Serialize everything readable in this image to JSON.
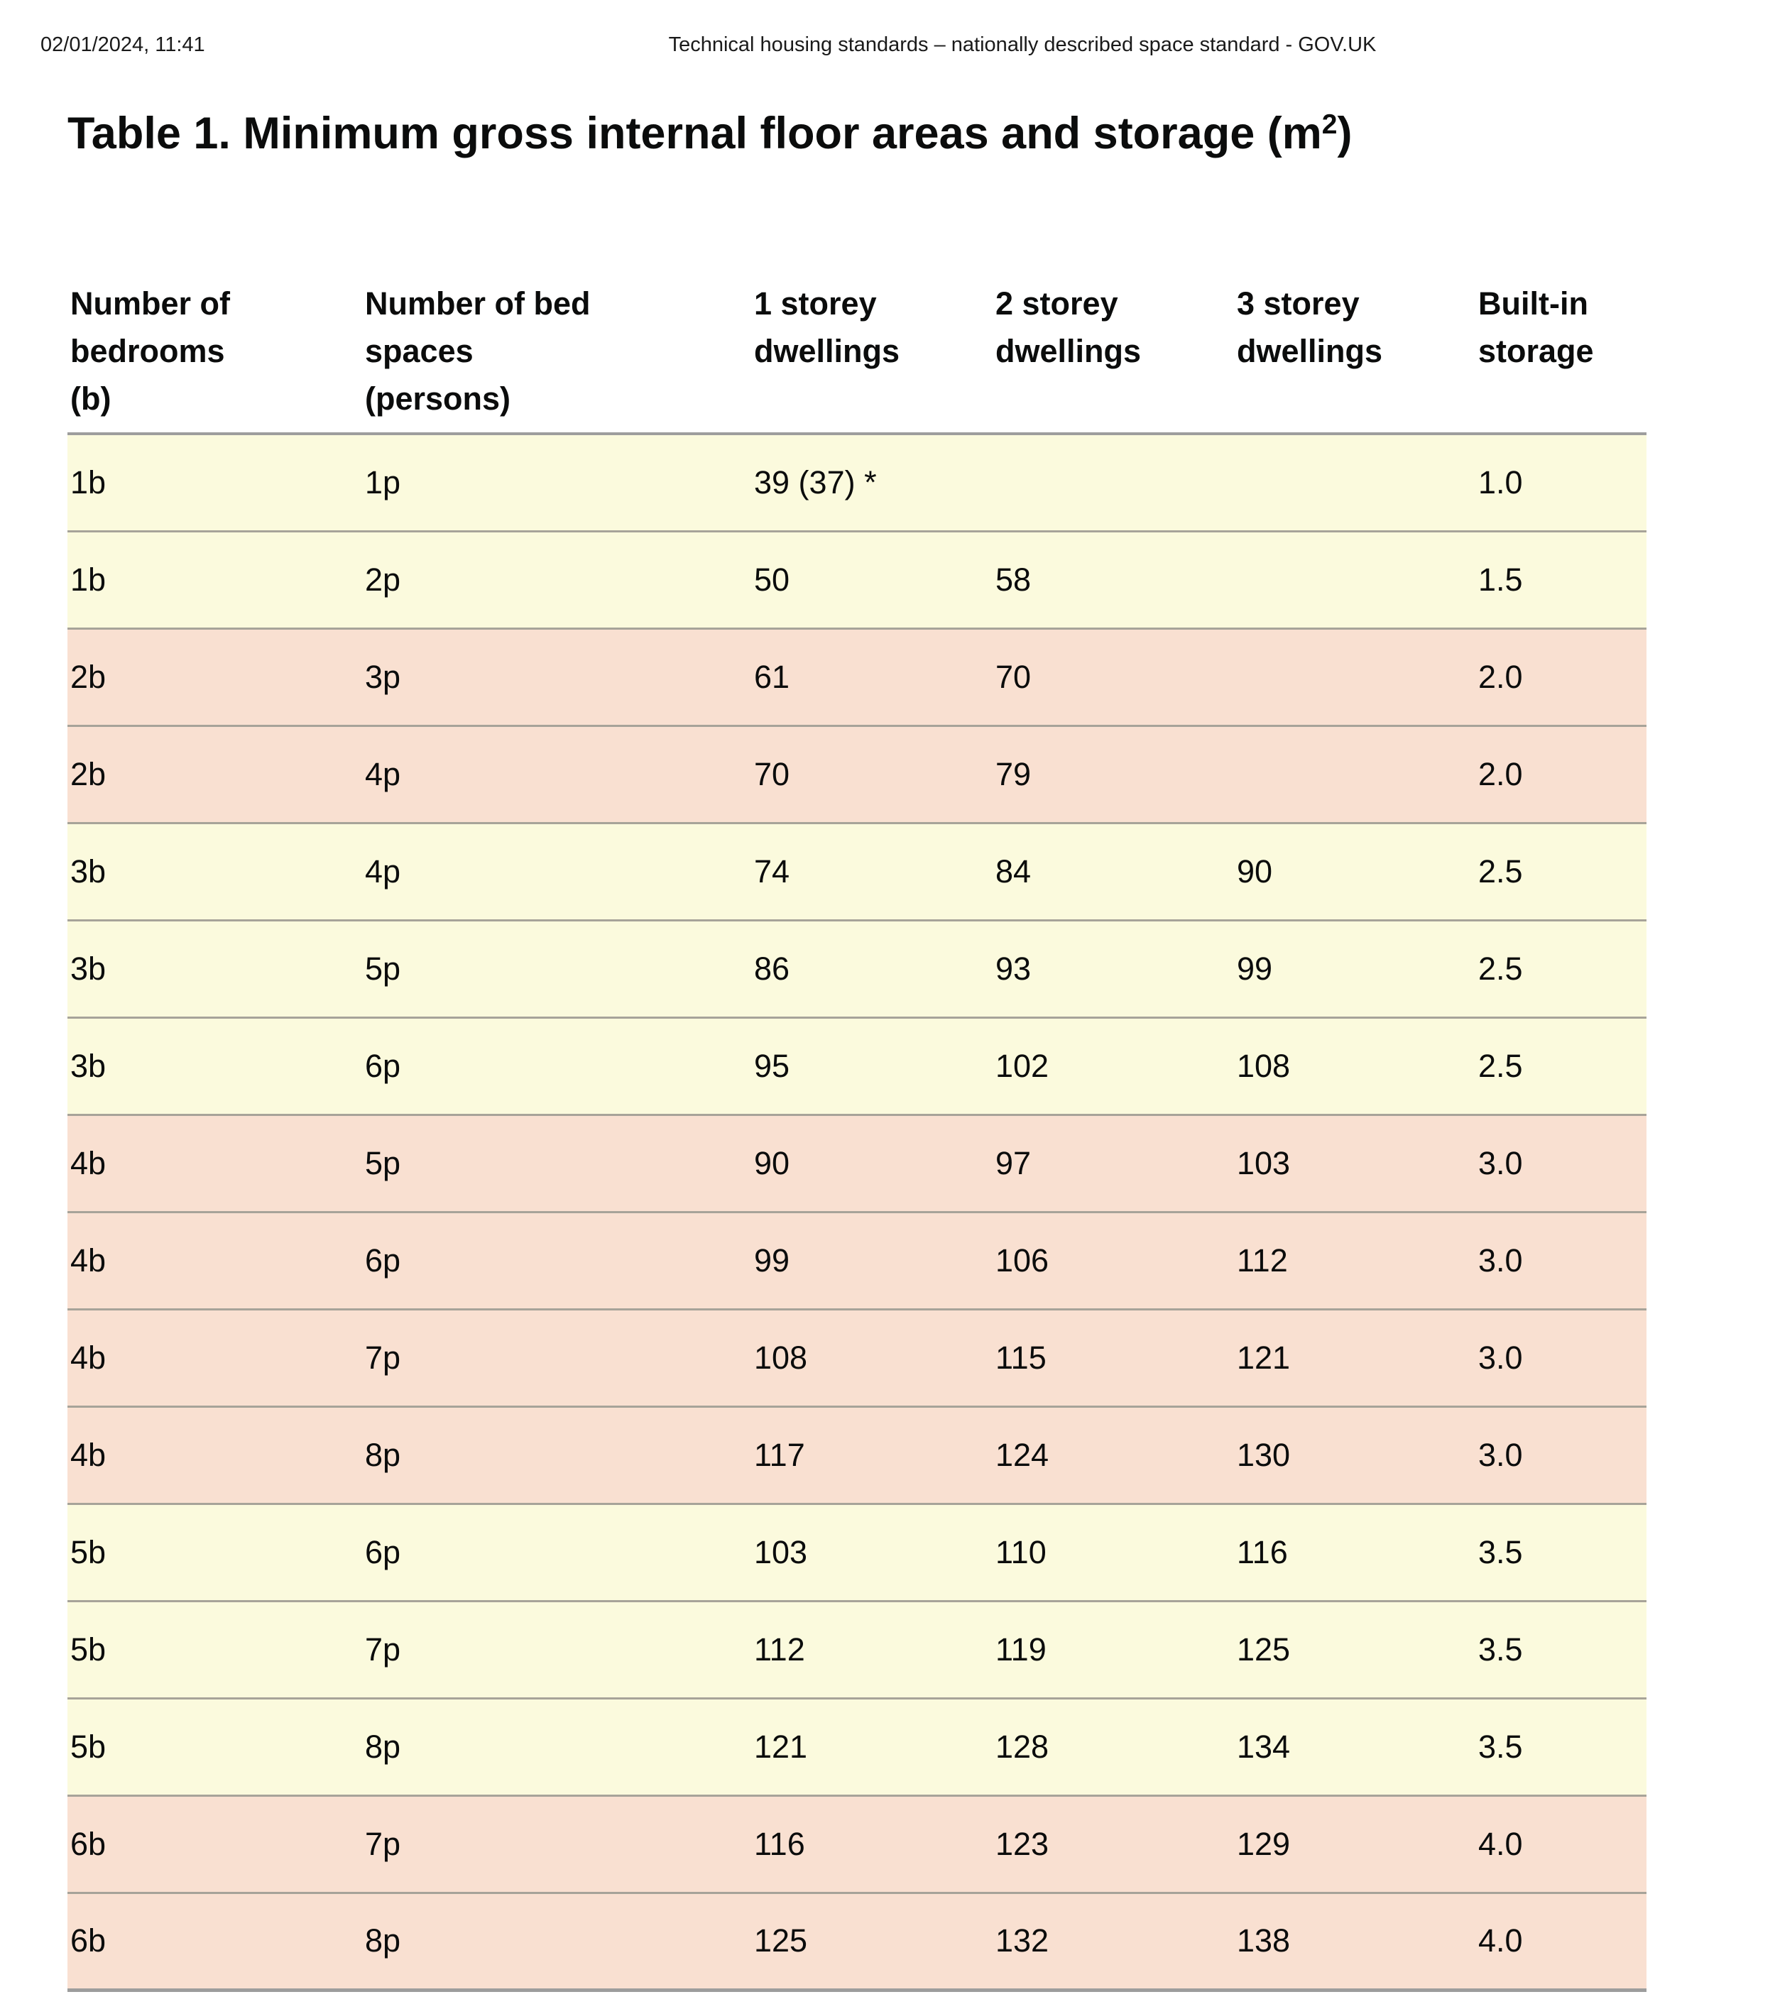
{
  "meta": {
    "datetime": "02/01/2024, 11:41",
    "doc_title": "Technical housing standards – nationally described space standard - GOV.UK"
  },
  "title": {
    "prefix": "Table 1. Minimum gross internal floor areas and storage (m",
    "sup": "2",
    "suffix": ")"
  },
  "colors": {
    "yellow": "#fbfadd",
    "pink": "#f9e0d1",
    "border_strong": "#9d9d9d",
    "border_row": "#a7a399",
    "text": "#0b0c0c"
  },
  "table": {
    "headers": [
      {
        "lines": [
          "Number of",
          "bedrooms",
          "(b)"
        ]
      },
      {
        "lines": [
          "Number of bed",
          "spaces",
          "(persons)"
        ]
      },
      {
        "lines": [
          "1 storey",
          "dwellings"
        ]
      },
      {
        "lines": [
          "2 storey",
          "dwellings"
        ]
      },
      {
        "lines": [
          "3 storey",
          "dwellings"
        ]
      },
      {
        "lines": [
          "Built-in",
          "storage"
        ]
      }
    ],
    "rows": [
      {
        "tone": "yellow",
        "cells": [
          "1b",
          "1p",
          "39 (37) *",
          "",
          "",
          "1.0"
        ]
      },
      {
        "tone": "yellow",
        "cells": [
          "1b",
          "2p",
          "50",
          "58",
          "",
          "1.5"
        ]
      },
      {
        "tone": "pink",
        "cells": [
          "2b",
          "3p",
          "61",
          "70",
          "",
          "2.0"
        ]
      },
      {
        "tone": "pink",
        "cells": [
          "2b",
          "4p",
          "70",
          "79",
          "",
          "2.0"
        ]
      },
      {
        "tone": "yellow",
        "cells": [
          "3b",
          "4p",
          "74",
          "84",
          "90",
          "2.5"
        ]
      },
      {
        "tone": "yellow",
        "cells": [
          "3b",
          "5p",
          "86",
          "93",
          "99",
          "2.5"
        ]
      },
      {
        "tone": "yellow",
        "cells": [
          "3b",
          "6p",
          "95",
          "102",
          "108",
          "2.5"
        ]
      },
      {
        "tone": "pink",
        "cells": [
          "4b",
          "5p",
          "90",
          "97",
          "103",
          "3.0"
        ]
      },
      {
        "tone": "pink",
        "cells": [
          "4b",
          "6p",
          "99",
          "106",
          "112",
          "3.0"
        ]
      },
      {
        "tone": "pink",
        "cells": [
          "4b",
          "7p",
          "108",
          "115",
          "121",
          "3.0"
        ]
      },
      {
        "tone": "pink",
        "cells": [
          "4b",
          "8p",
          "117",
          "124",
          "130",
          "3.0"
        ]
      },
      {
        "tone": "yellow",
        "cells": [
          "5b",
          "6p",
          "103",
          "110",
          "116",
          "3.5"
        ]
      },
      {
        "tone": "yellow",
        "cells": [
          "5b",
          "7p",
          "112",
          "119",
          "125",
          "3.5"
        ]
      },
      {
        "tone": "yellow",
        "cells": [
          "5b",
          "8p",
          "121",
          "128",
          "134",
          "3.5"
        ]
      },
      {
        "tone": "pink",
        "cells": [
          "6b",
          "7p",
          "116",
          "123",
          "129",
          "4.0"
        ]
      },
      {
        "tone": "pink",
        "cells": [
          "6b",
          "8p",
          "125",
          "132",
          "138",
          "4.0"
        ]
      }
    ]
  }
}
